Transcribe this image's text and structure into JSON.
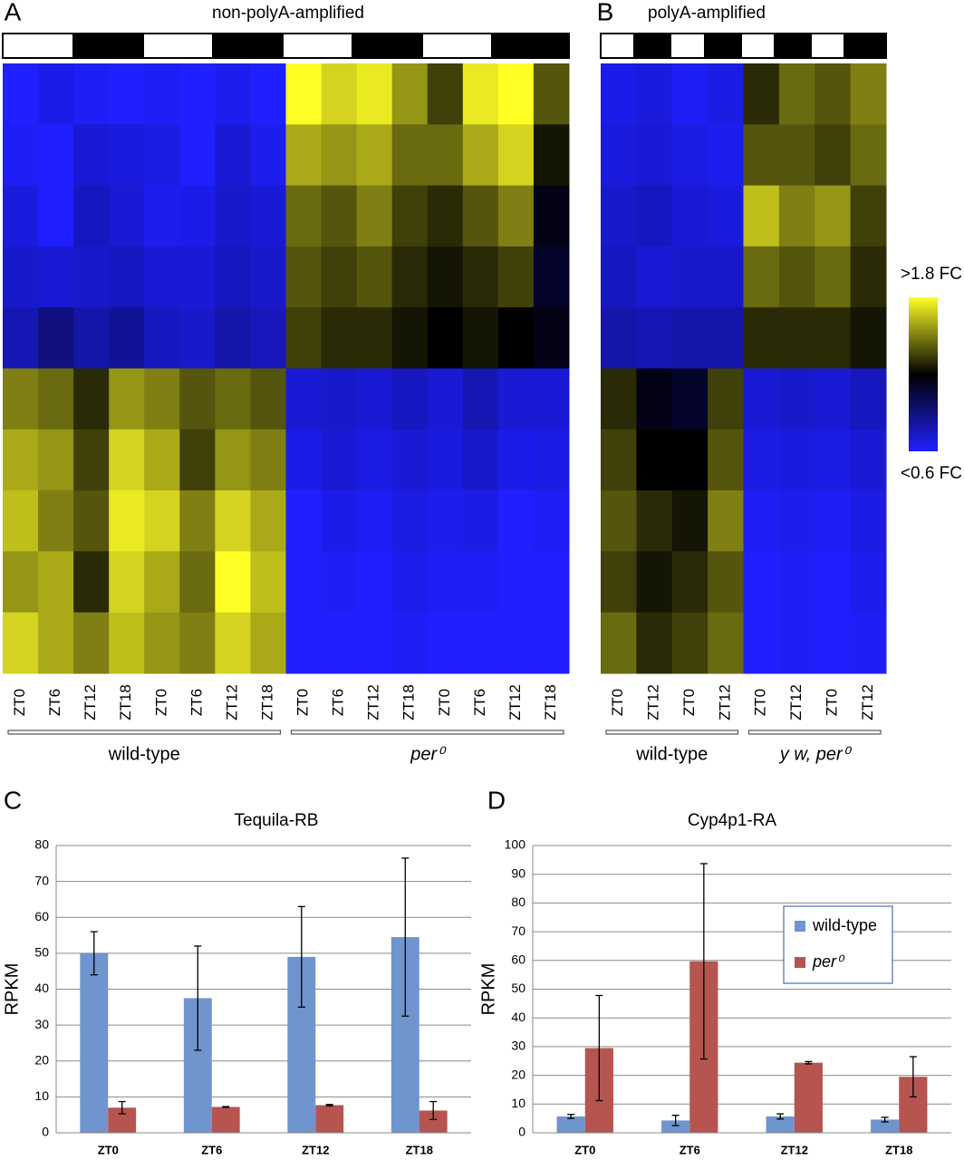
{
  "chart_data": [
    {
      "type": "heatmap",
      "panel": "A",
      "title": "non-polyA-amplified",
      "colormap": [
        "#1f1fff",
        "#000000",
        "#ffff26"
      ],
      "vlim": [
        0.6,
        1.8
      ],
      "groups": [
        {
          "name": "wild-type",
          "font_style": "normal",
          "columns": [
            "ZT0",
            "ZT6",
            "ZT12",
            "ZT18",
            "ZT0",
            "ZT6",
            "ZT12",
            "ZT18"
          ],
          "values": [
            [
              0.6,
              0.62,
              0.68,
              0.72,
              0.78,
              1.5,
              1.6,
              1.65,
              1.55,
              1.7
            ],
            [
              0.65,
              0.6,
              0.6,
              0.7,
              0.9,
              1.45,
              1.55,
              1.5,
              1.6,
              1.6
            ],
            [
              0.62,
              0.7,
              0.75,
              0.72,
              0.8,
              1.3,
              1.35,
              1.4,
              1.3,
              1.5
            ],
            [
              0.6,
              0.68,
              0.7,
              0.75,
              0.85,
              1.55,
              1.7,
              1.75,
              1.7,
              1.65
            ],
            [
              0.62,
              0.66,
              0.64,
              0.7,
              0.75,
              1.5,
              1.6,
              1.7,
              1.6,
              1.55
            ],
            [
              0.6,
              0.6,
              0.65,
              0.7,
              0.72,
              1.4,
              1.35,
              1.5,
              1.45,
              1.5
            ],
            [
              0.64,
              0.7,
              0.72,
              0.75,
              0.8,
              1.45,
              1.55,
              1.7,
              1.8,
              1.7
            ],
            [
              0.6,
              0.64,
              0.7,
              0.72,
              0.76,
              1.4,
              1.5,
              1.6,
              1.65,
              1.6
            ]
          ]
        },
        {
          "name": "per⁰",
          "font_style": "italic",
          "columns": [
            "ZT0",
            "ZT6",
            "ZT12",
            "ZT18",
            "ZT0",
            "ZT6",
            "ZT12",
            "ZT18"
          ],
          "values": [
            [
              1.8,
              1.6,
              1.45,
              1.4,
              1.35,
              0.7,
              0.65,
              0.6,
              0.6,
              0.6
            ],
            [
              1.7,
              1.55,
              1.4,
              1.35,
              1.3,
              0.72,
              0.7,
              0.65,
              0.62,
              0.6
            ],
            [
              1.75,
              1.6,
              1.5,
              1.4,
              1.3,
              0.7,
              0.66,
              0.62,
              0.6,
              0.6
            ],
            [
              1.55,
              1.45,
              1.35,
              1.3,
              1.25,
              0.75,
              0.7,
              0.66,
              0.64,
              0.62
            ],
            [
              1.35,
              1.45,
              1.3,
              1.25,
              1.2,
              0.7,
              0.68,
              0.64,
              0.62,
              0.6
            ],
            [
              1.75,
              1.6,
              1.4,
              1.3,
              1.25,
              0.78,
              0.72,
              0.66,
              0.62,
              0.6
            ],
            [
              1.8,
              1.7,
              1.5,
              1.35,
              1.2,
              0.7,
              0.65,
              0.6,
              0.6,
              0.6
            ],
            [
              1.4,
              1.25,
              1.15,
              1.1,
              1.15,
              0.7,
              0.66,
              0.62,
              0.6,
              0.6
            ]
          ]
        }
      ]
    },
    {
      "type": "heatmap",
      "panel": "B",
      "title": "polyA-amplified",
      "colormap": [
        "#1f1fff",
        "#000000",
        "#ffff26"
      ],
      "vlim": [
        0.6,
        1.8
      ],
      "colorbar_ticks": [
        {
          "value": 1.8,
          "label": ">1.8 FC"
        },
        {
          "value": 0.6,
          "label": "<0.6 FC"
        }
      ],
      "groups": [
        {
          "name": "wild-type",
          "font_style": "normal",
          "columns": [
            "ZT0",
            "ZT12",
            "ZT0",
            "ZT12"
          ],
          "values": [
            [
              0.65,
              0.68,
              0.72,
              0.75,
              0.8,
              1.3,
              1.35,
              1.4,
              1.35,
              1.45
            ],
            [
              0.68,
              0.7,
              0.75,
              0.7,
              0.78,
              1.15,
              1.2,
              1.3,
              1.25,
              1.3
            ],
            [
              0.62,
              0.66,
              0.7,
              0.72,
              0.8,
              1.1,
              1.2,
              1.25,
              1.3,
              1.35
            ],
            [
              0.66,
              0.64,
              0.68,
              0.72,
              0.8,
              1.35,
              1.4,
              1.5,
              1.4,
              1.45
            ]
          ]
        },
        {
          "name": "y w, per⁰",
          "font_style": "italic",
          "columns": [
            "ZT0",
            "ZT12",
            "ZT0",
            "ZT12"
          ],
          "values": [
            [
              1.3,
              1.4,
              1.65,
              1.45,
              1.3,
              0.7,
              0.66,
              0.62,
              0.6,
              0.6
            ],
            [
              1.45,
              1.4,
              1.5,
              1.4,
              1.3,
              0.72,
              0.68,
              0.64,
              0.62,
              0.62
            ],
            [
              1.4,
              1.35,
              1.55,
              1.45,
              1.3,
              0.7,
              0.66,
              0.62,
              0.6,
              0.6
            ],
            [
              1.5,
              1.45,
              1.35,
              1.3,
              1.25,
              0.75,
              0.7,
              0.66,
              0.64,
              0.62
            ]
          ]
        }
      ]
    },
    {
      "type": "bar",
      "panel": "C",
      "title": "Tequila-RB",
      "ylabel": "RPKM",
      "categories": [
        "ZT0",
        "ZT6",
        "ZT12",
        "ZT18"
      ],
      "ylim": [
        0,
        80
      ],
      "yticks": [
        0,
        10,
        20,
        30,
        40,
        50,
        60,
        70,
        80
      ],
      "grid": true,
      "legend": false,
      "series": [
        {
          "name": "wild-type",
          "color": "#7094cd",
          "values": [
            50,
            37.5,
            49,
            54.5
          ],
          "errors": [
            6,
            14.5,
            14,
            22
          ]
        },
        {
          "name": "per⁰",
          "color": "#b65450",
          "values": [
            7,
            7.2,
            7.7,
            6.2
          ],
          "errors": [
            1.7,
            0.1,
            0.2,
            2.5
          ]
        }
      ]
    },
    {
      "type": "bar",
      "panel": "D",
      "title": "Cyp4p1-RA",
      "ylabel": "RPKM",
      "categories": [
        "ZT0",
        "ZT6",
        "ZT12",
        "ZT18"
      ],
      "ylim": [
        0,
        100
      ],
      "yticks": [
        0,
        10,
        20,
        30,
        40,
        50,
        60,
        70,
        80,
        90,
        100
      ],
      "grid": true,
      "legend": "upper right",
      "series": [
        {
          "name": "wild-type",
          "color": "#7094cd",
          "values": [
            5.7,
            4.3,
            5.7,
            4.6
          ],
          "errors": [
            0.7,
            1.8,
            0.9,
            0.8
          ]
        },
        {
          "name": "per⁰",
          "color": "#b65450",
          "values": [
            29.5,
            59.7,
            24.4,
            19.5
          ],
          "errors": [
            18.3,
            34,
            0.4,
            7
          ]
        }
      ]
    }
  ]
}
